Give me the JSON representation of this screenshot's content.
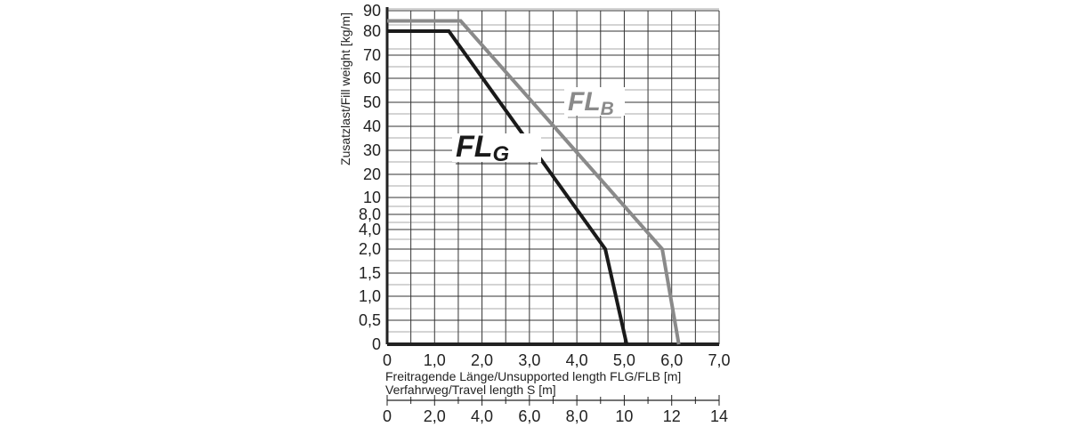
{
  "chart_data": {
    "type": "line",
    "ylabel": "Zusatzlast/Fill weight [kg/m]",
    "xlabel": "Freitragende Länge/Unsupported length FLG/FLB [m]",
    "xlabel2": "Verfahrweg/Travel length S [m]",
    "x_ticks": [
      "0",
      "1,0",
      "2,0",
      "3,0",
      "4,0",
      "5,0",
      "6,0",
      "7,0"
    ],
    "x2_ticks": [
      "0",
      "2,0",
      "4,0",
      "6,0",
      "8,0",
      "10",
      "12",
      "14"
    ],
    "y_ticks": [
      "0",
      "0,5",
      "1,0",
      "1,5",
      "2,0",
      "4,0",
      "8,0",
      "10",
      "20",
      "30",
      "40",
      "50",
      "60",
      "70",
      "80",
      "90"
    ],
    "xlim": [
      0,
      7
    ],
    "series": [
      {
        "name": "FLG",
        "label_main": "FL",
        "label_sub": "G",
        "color": "#1a1a1a",
        "x": [
          0,
          1.3,
          4.6,
          5.05
        ],
        "y": [
          80,
          80,
          2.0,
          0
        ]
      },
      {
        "name": "FLB",
        "label_main": "FL",
        "label_sub": "B",
        "color": "#8a8a8a",
        "x": [
          0,
          1.55,
          5.8,
          6.15
        ],
        "y": [
          85,
          85,
          2.0,
          0
        ]
      }
    ]
  }
}
